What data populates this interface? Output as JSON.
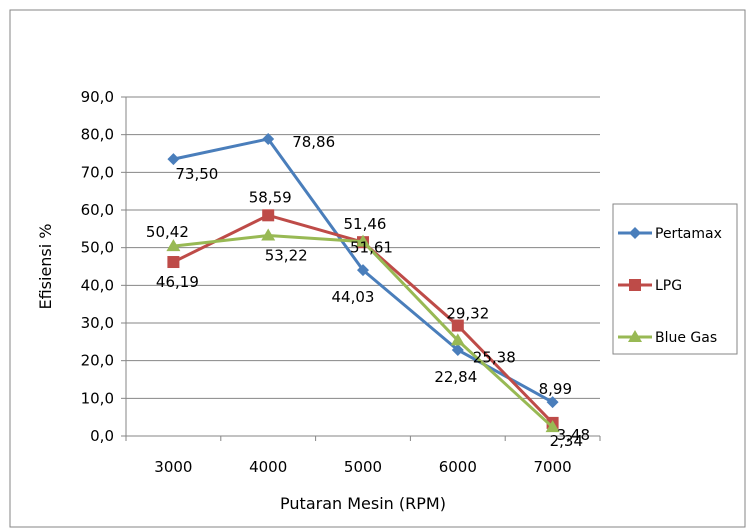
{
  "chart_data": {
    "type": "line",
    "title": "",
    "xlabel": "Putaran Mesin (RPM)",
    "ylabel": "Efisiensi  %",
    "categories": [
      "3000",
      "4000",
      "5000",
      "6000",
      "7000"
    ],
    "ylim": [
      0,
      90
    ],
    "yticks": [
      "0,0",
      "10,0",
      "20,0",
      "30,0",
      "40,0",
      "50,0",
      "60,0",
      "70,0",
      "80,0",
      "90,0"
    ],
    "grid": true,
    "legend_position": "right",
    "series": [
      {
        "name": "Pertamax",
        "color": "#4a7ebb",
        "marker": "diamond",
        "values": [
          73.5,
          78.86,
          44.03,
          22.84,
          8.99
        ],
        "labels": [
          "73,50",
          "78,86",
          "44,03",
          "22,84",
          "8,99"
        ]
      },
      {
        "name": "LPG",
        "color": "#be4b48",
        "marker": "square",
        "values": [
          46.19,
          58.59,
          51.46,
          29.32,
          3.48
        ],
        "labels": [
          "46,19",
          "58,59",
          "51,46",
          "29,32",
          "3,48"
        ]
      },
      {
        "name": "Blue Gas",
        "color": "#98b954",
        "marker": "triangle",
        "values": [
          50.42,
          53.22,
          51.61,
          25.38,
          2.34
        ],
        "labels": [
          "50,42",
          "53,22",
          "51,61",
          "25,38",
          "2,34"
        ]
      }
    ]
  }
}
